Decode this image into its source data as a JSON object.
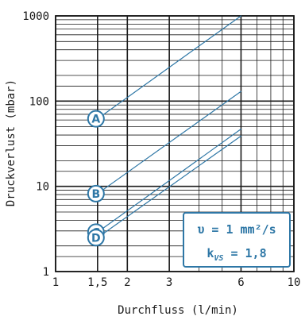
{
  "chart_data": {
    "type": "line",
    "x_scale": "log",
    "y_scale": "log",
    "xlim": [
      1,
      10
    ],
    "ylim": [
      1,
      1000
    ],
    "xlabel": "Durchfluss (l/min)",
    "ylabel": "Druckverlust (mbar)",
    "x_ticks": [
      {
        "value": 1,
        "label": "1"
      },
      {
        "value": 1.5,
        "label": "1,5"
      },
      {
        "value": 2,
        "label": "2"
      },
      {
        "value": 3,
        "label": "3"
      },
      {
        "value": 6,
        "label": "6"
      },
      {
        "value": 10,
        "label": "10"
      }
    ],
    "y_ticks": [
      {
        "value": 1,
        "label": "1"
      },
      {
        "value": 10,
        "label": "10"
      },
      {
        "value": 100,
        "label": "100"
      },
      {
        "value": 1000,
        "label": "1000"
      }
    ],
    "x_major_lines": [
      1,
      1.5,
      2,
      3,
      6,
      10
    ],
    "x_minor_lines": [
      4,
      5,
      7,
      8,
      9
    ],
    "y_minor_lines": [
      1.5,
      2,
      3,
      4,
      5,
      6,
      7,
      8,
      9,
      15,
      20,
      30,
      40,
      50,
      60,
      70,
      80,
      90,
      150,
      200,
      300,
      400,
      500,
      600,
      700,
      800,
      900
    ],
    "series": [
      {
        "name": "A",
        "x": [
          1.5,
          6
        ],
        "y": [
          62,
          1000
        ]
      },
      {
        "name": "B",
        "x": [
          1.5,
          6
        ],
        "y": [
          8.2,
          130
        ]
      },
      {
        "name": "C",
        "x": [
          1.5,
          6
        ],
        "y": [
          2.9,
          47
        ]
      },
      {
        "name": "D",
        "x": [
          1.5,
          6
        ],
        "y": [
          2.5,
          39
        ]
      }
    ],
    "info_box": {
      "line1": "υ = 1 mm²/s",
      "line2_prefix": "k",
      "line2_sub": "VS",
      "line2_suffix": " = 1,8"
    },
    "colors": {
      "line": "#2e77a6",
      "grid": "#1a1a1a",
      "box": "#2e77a6"
    }
  }
}
